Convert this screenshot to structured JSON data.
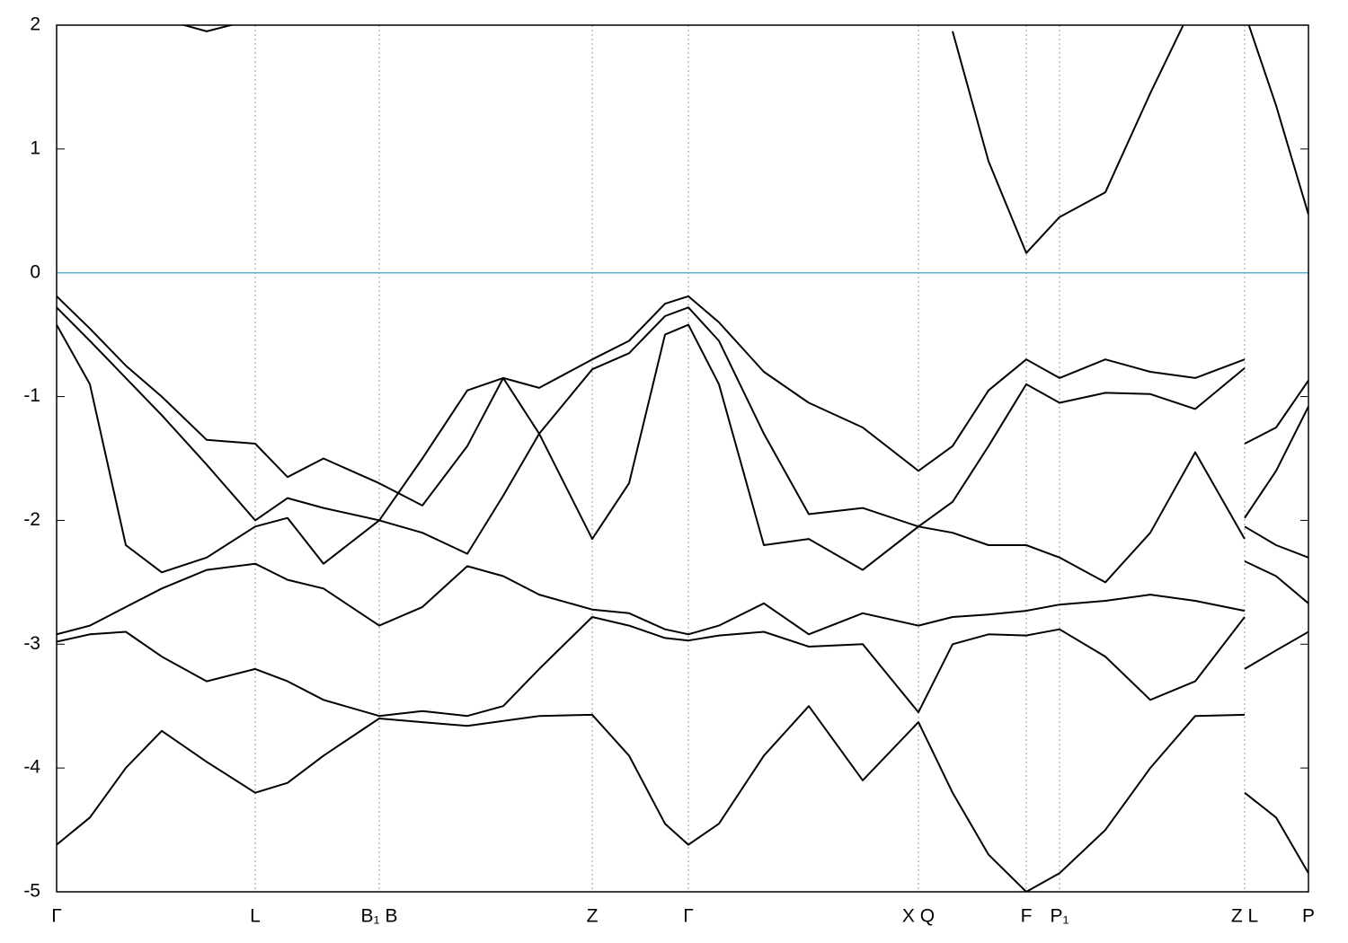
{
  "chart_data": {
    "type": "line",
    "x": [
      0,
      37,
      77,
      117,
      167,
      221,
      257,
      297,
      359,
      407,
      457,
      497,
      537,
      596,
      637,
      677,
      703,
      737,
      787,
      837,
      897,
      959,
      997,
      1037,
      1079,
      1116,
      1167,
      1217,
      1267,
      1322,
      1322,
      1322,
      1357,
      1393
    ],
    "series": [
      {
        "color": "#000000",
        "values": [
          -0.19,
          -0.45,
          -0.75,
          -1.0,
          -1.35,
          -1.38,
          -1.65,
          -1.5,
          -1.7,
          -1.88,
          -1.4,
          -0.85,
          -0.93,
          -0.7,
          -0.55,
          -0.25,
          -0.19,
          -0.4,
          -0.8,
          -1.05,
          -1.25,
          -1.6,
          -1.4,
          -0.95,
          -0.7,
          -0.85,
          -0.7,
          -0.8,
          -0.85,
          -0.7,
          null,
          -1.38,
          -1.25,
          -0.87
        ]
      },
      {
        "color": "#000000",
        "values": [
          -0.28,
          -0.55,
          -0.85,
          -1.15,
          -1.55,
          -2.0,
          -1.82,
          -1.9,
          -2.0,
          -2.1,
          -2.27,
          -1.8,
          -1.3,
          -0.78,
          -0.65,
          -0.35,
          -0.28,
          -0.55,
          -1.3,
          -1.95,
          -1.9,
          -2.05,
          -1.85,
          -1.4,
          -0.9,
          -1.05,
          -0.97,
          -0.98,
          -1.1,
          -0.77,
          null,
          -1.98,
          -1.6,
          -1.08
        ]
      },
      {
        "color": "#000000",
        "values": [
          -0.42,
          -0.9,
          -2.2,
          -2.42,
          -2.3,
          -2.05,
          -1.98,
          -2.35,
          -2.0,
          -1.5,
          -0.95,
          -0.85,
          -1.3,
          -2.15,
          -1.7,
          -0.5,
          -0.42,
          -0.9,
          -2.2,
          -2.15,
          -2.4,
          -2.05,
          -2.1,
          -2.2,
          -2.2,
          -2.3,
          -2.5,
          -2.1,
          -1.45,
          -2.15,
          null,
          -2.05,
          -2.2,
          -2.3
        ]
      },
      {
        "color": "#000000",
        "values": [
          -2.92,
          -2.85,
          -2.7,
          -2.55,
          -2.4,
          -2.35,
          -2.48,
          -2.55,
          -2.85,
          -2.7,
          -2.37,
          -2.45,
          -2.6,
          -2.72,
          -2.75,
          -2.88,
          -2.92,
          -2.85,
          -2.67,
          -2.92,
          -2.75,
          -2.85,
          -2.78,
          -2.76,
          -2.73,
          -2.68,
          -2.65,
          -2.6,
          -2.65,
          -2.73,
          null,
          -2.33,
          -2.45,
          -2.67
        ]
      },
      {
        "color": "#000000",
        "values": [
          -2.98,
          -2.92,
          -2.9,
          -3.1,
          -3.3,
          -3.2,
          -3.3,
          -3.45,
          -3.58,
          -3.54,
          -3.58,
          -3.5,
          -3.2,
          -2.78,
          -2.85,
          -2.95,
          -2.97,
          -2.93,
          -2.9,
          -3.02,
          -3.0,
          -3.55,
          -3.0,
          -2.92,
          -2.93,
          -2.88,
          -3.1,
          -3.45,
          -3.3,
          -2.78,
          null,
          -3.2,
          -3.05,
          -2.9
        ]
      },
      {
        "color": "#000000",
        "values": [
          -4.62,
          -4.4,
          -4.0,
          -3.7,
          -3.95,
          -4.2,
          -4.12,
          -3.9,
          -3.6,
          -3.63,
          -3.66,
          -3.62,
          -3.58,
          -3.57,
          -3.9,
          -4.45,
          -4.62,
          -4.45,
          -3.9,
          -3.5,
          -4.1,
          -3.63,
          -4.2,
          -4.7,
          -5.0,
          -4.85,
          -4.5,
          -4.0,
          -3.58,
          -3.57,
          null,
          -4.2,
          -4.4,
          -4.85
        ]
      },
      {
        "color": "#000000",
        "values": [
          null,
          null,
          null,
          2.05,
          1.95,
          2.05,
          null,
          null,
          null,
          null,
          null,
          null,
          null,
          null,
          null,
          null,
          null,
          null,
          null,
          null,
          null,
          null,
          1.95,
          0.9,
          0.16,
          0.45,
          0.65,
          1.45,
          2.2,
          null,
          null,
          2.1,
          1.35,
          0.47
        ]
      }
    ],
    "xlim": [
      0,
      1393
    ],
    "xticks": [
      {
        "value": 0,
        "label": "Γ"
      },
      {
        "value": 221,
        "label": "L"
      },
      {
        "value": 359,
        "label": "B₁ B"
      },
      {
        "value": 596,
        "label": "Z"
      },
      {
        "value": 703,
        "label": "Γ"
      },
      {
        "value": 959,
        "label": "X Q"
      },
      {
        "value": 1079,
        "label": "F"
      },
      {
        "value": 1116,
        "label": "P₁"
      },
      {
        "value": 1322,
        "label": "Z L"
      },
      {
        "value": 1393,
        "label": "P"
      }
    ],
    "ylim": [
      -5,
      2
    ],
    "yticks": [
      -5,
      -4,
      -3,
      -2,
      -1,
      0,
      1,
      2
    ],
    "reference_line": {
      "value": 0,
      "color": "#5ab4c8"
    },
    "grid": true
  }
}
